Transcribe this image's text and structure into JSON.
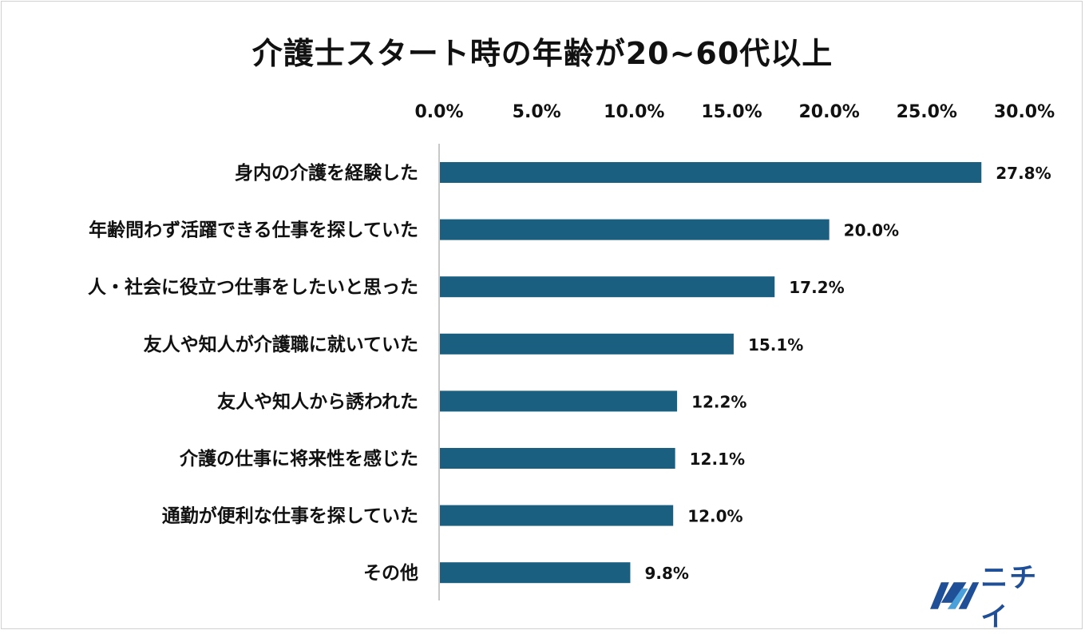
{
  "colors": {
    "bar": "#1a5f80",
    "axis_line": "#c8c8c8",
    "text": "#111111",
    "logo": "#1f4f96"
  },
  "chart_data": {
    "type": "bar",
    "orientation": "horizontal",
    "title": "介護士スタート時の年齢が20~60代以上",
    "xaxis_position": "top",
    "xlim": [
      0,
      30
    ],
    "ticks": [
      0,
      5,
      10,
      15,
      20,
      25,
      30
    ],
    "tick_labels": [
      "0.0%",
      "5.0%",
      "10.0%",
      "15.0%",
      "20.0%",
      "25.0%",
      "30.0%"
    ],
    "grid": false,
    "categories": [
      "身内の介護を経験した",
      "年齢問わず活躍できる仕事を探していた",
      "人・社会に役立つ仕事をしたいと思った",
      "友人や知人が介護職に就いていた",
      "友人や知人から誘われた",
      "介護の仕事に将来性を感じた",
      "通勤が便利な仕事を探していた",
      "その他"
    ],
    "values": [
      27.8,
      20.0,
      17.2,
      15.1,
      12.2,
      12.1,
      12.0,
      9.8
    ],
    "data_labels": [
      "27.8%",
      "20.0%",
      "17.2%",
      "15.1%",
      "12.2%",
      "12.1%",
      "12.0%",
      "9.8%"
    ]
  },
  "logo": {
    "text": "ニチイ",
    "icon": "nichii-logo-mark"
  }
}
